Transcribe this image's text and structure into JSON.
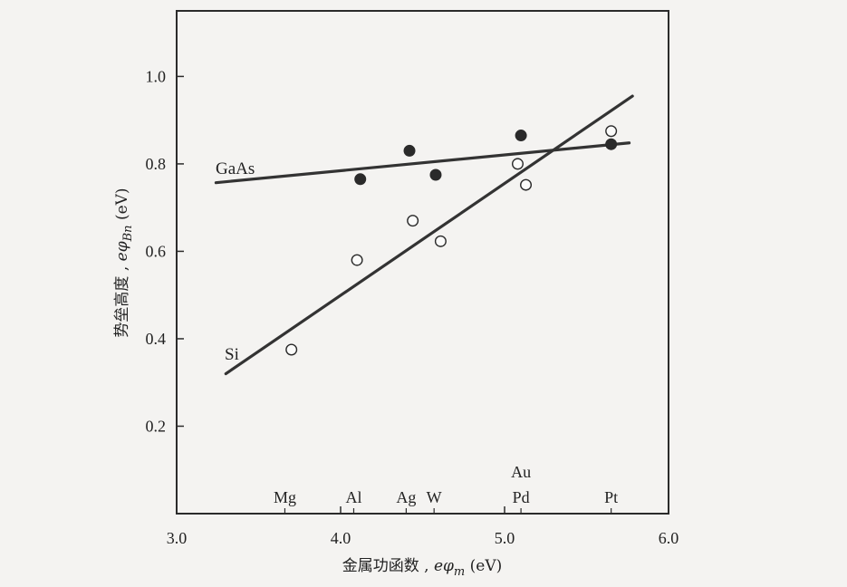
{
  "chart_data": {
    "type": "scatter",
    "xlabel": "金属功函数, eφm (eV)",
    "xlabel_parts": {
      "text": "金属功函数 , ",
      "sym": "eφ",
      "sub": "m",
      "unit": " (eV)"
    },
    "ylabel": "势垒高度, eφBn (eV)",
    "ylabel_parts": {
      "text": "势垒高度 , ",
      "sym": "eφ",
      "sub": "Bn",
      "unit": " (eV)"
    },
    "xlim": [
      3.0,
      6.0
    ],
    "ylim": [
      0.0,
      1.15
    ],
    "x_ticks": [
      {
        "value": 3.0,
        "label": "3.0"
      },
      {
        "value": 4.0,
        "label": "4.0"
      },
      {
        "value": 5.0,
        "label": "5.0"
      },
      {
        "value": 6.0,
        "label": "6.0"
      }
    ],
    "y_ticks": [
      {
        "value": 0.2,
        "label": "0.2"
      },
      {
        "value": 0.4,
        "label": "0.4"
      },
      {
        "value": 0.6,
        "label": "0.6"
      },
      {
        "value": 0.8,
        "label": "0.8"
      },
      {
        "value": 1.0,
        "label": "1.0"
      }
    ],
    "grid": false,
    "metals": [
      {
        "name": "Mg",
        "x": 3.66
      },
      {
        "name": "Al",
        "x": 4.08
      },
      {
        "name": "Ag",
        "x": 4.4
      },
      {
        "name": "W",
        "x": 4.57
      },
      {
        "name": "Au",
        "x": 5.1,
        "row": 2
      },
      {
        "name": "Pd",
        "x": 5.1
      },
      {
        "name": "Pt",
        "x": 5.65
      }
    ],
    "series": [
      {
        "name": "GaAs",
        "marker": "filled",
        "points": [
          {
            "x": 4.12,
            "y": 0.765
          },
          {
            "x": 4.42,
            "y": 0.83
          },
          {
            "x": 4.58,
            "y": 0.775
          },
          {
            "x": 5.1,
            "y": 0.865
          },
          {
            "x": 5.65,
            "y": 0.845
          }
        ],
        "fit": {
          "x": [
            3.24,
            5.76
          ],
          "y": [
            0.757,
            0.848
          ]
        }
      },
      {
        "name": "Si",
        "marker": "open",
        "points": [
          {
            "x": 3.7,
            "y": 0.375
          },
          {
            "x": 4.1,
            "y": 0.58
          },
          {
            "x": 4.44,
            "y": 0.67
          },
          {
            "x": 4.61,
            "y": 0.623
          },
          {
            "x": 5.08,
            "y": 0.8
          },
          {
            "x": 5.13,
            "y": 0.752
          },
          {
            "x": 5.65,
            "y": 0.875
          }
        ],
        "fit": {
          "x": [
            3.3,
            5.78
          ],
          "y": [
            0.32,
            0.955
          ]
        }
      }
    ]
  }
}
